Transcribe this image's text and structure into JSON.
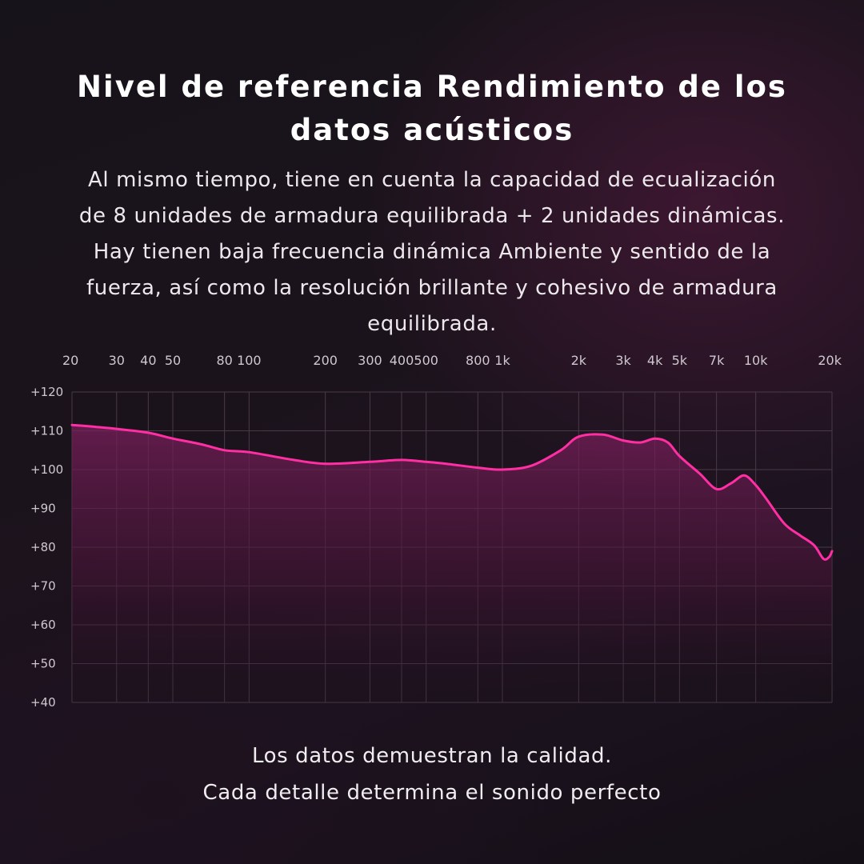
{
  "title_lines": [
    "Nivel de referencia Rendimiento de los",
    "datos acústicos"
  ],
  "description_lines": [
    "Al mismo tiempo, tiene en cuenta la capacidad de ecualización",
    "de 8 unidades de armadura equilibrada + 2 unidades dinámicas.",
    "Hay tienen baja frecuencia dinámica Ambiente y sentido de la",
    "fuerza, así como la resolución brillante y cohesivo de armadura",
    "equilibrada."
  ],
  "footer_lines": [
    "Los datos demuestran la calidad.",
    "Cada detalle determina el sonido perfecto"
  ],
  "colors": {
    "curve": "#ff2fa3",
    "fill_top": "#7a1f5c",
    "grid": "#4a3a48",
    "tick_text": "#cfc8cf"
  },
  "chart_data": {
    "type": "line",
    "title": "",
    "xlabel": "",
    "ylabel": "",
    "x_scale": "log",
    "grid": true,
    "legend": "none",
    "xlim": [
      20,
      20000
    ],
    "ylim": [
      40,
      120
    ],
    "x_ticks": [
      {
        "value": 20,
        "label": "20"
      },
      {
        "value": 30,
        "label": "30"
      },
      {
        "value": 40,
        "label": "40"
      },
      {
        "value": 50,
        "label": "50"
      },
      {
        "value": 80,
        "label": "80"
      },
      {
        "value": 100,
        "label": "100"
      },
      {
        "value": 200,
        "label": "200"
      },
      {
        "value": 300,
        "label": "300"
      },
      {
        "value": 400,
        "label": "400"
      },
      {
        "value": 500,
        "label": "500"
      },
      {
        "value": 800,
        "label": "800"
      },
      {
        "value": 1000,
        "label": "1k"
      },
      {
        "value": 2000,
        "label": "2k"
      },
      {
        "value": 3000,
        "label": "3k"
      },
      {
        "value": 4000,
        "label": "4k"
      },
      {
        "value": 5000,
        "label": "5k"
      },
      {
        "value": 7000,
        "label": "7k"
      },
      {
        "value": 10000,
        "label": "10k"
      },
      {
        "value": 20000,
        "label": "20k"
      }
    ],
    "y_ticks": [
      {
        "value": 120,
        "label": "+120"
      },
      {
        "value": 110,
        "label": "+110"
      },
      {
        "value": 100,
        "label": "+100"
      },
      {
        "value": 90,
        "label": "+90"
      },
      {
        "value": 80,
        "label": "+80"
      },
      {
        "value": 70,
        "label": "+70"
      },
      {
        "value": 60,
        "label": "+60"
      },
      {
        "value": 50,
        "label": "+50"
      },
      {
        "value": 40,
        "label": "+40"
      }
    ],
    "series": [
      {
        "points": [
          [
            20,
            111.5
          ],
          [
            25,
            111
          ],
          [
            30,
            110.5
          ],
          [
            40,
            109.5
          ],
          [
            50,
            108
          ],
          [
            65,
            106.5
          ],
          [
            80,
            105
          ],
          [
            100,
            104.5
          ],
          [
            150,
            102.5
          ],
          [
            200,
            101.5
          ],
          [
            300,
            102
          ],
          [
            400,
            102.5
          ],
          [
            500,
            102
          ],
          [
            600,
            101.5
          ],
          [
            800,
            100.5
          ],
          [
            1000,
            100
          ],
          [
            1300,
            101
          ],
          [
            1700,
            105
          ],
          [
            2000,
            108.5
          ],
          [
            2500,
            109
          ],
          [
            3000,
            107.5
          ],
          [
            3500,
            107
          ],
          [
            4000,
            108
          ],
          [
            4500,
            107
          ],
          [
            5000,
            103.5
          ],
          [
            6000,
            99
          ],
          [
            7000,
            95
          ],
          [
            8000,
            96.5
          ],
          [
            9000,
            98.5
          ],
          [
            10000,
            96
          ],
          [
            11000,
            92.5
          ],
          [
            13000,
            86
          ],
          [
            15000,
            83
          ],
          [
            17000,
            80.5
          ],
          [
            18500,
            77
          ],
          [
            19500,
            77.5
          ],
          [
            20000,
            79
          ]
        ]
      }
    ]
  }
}
